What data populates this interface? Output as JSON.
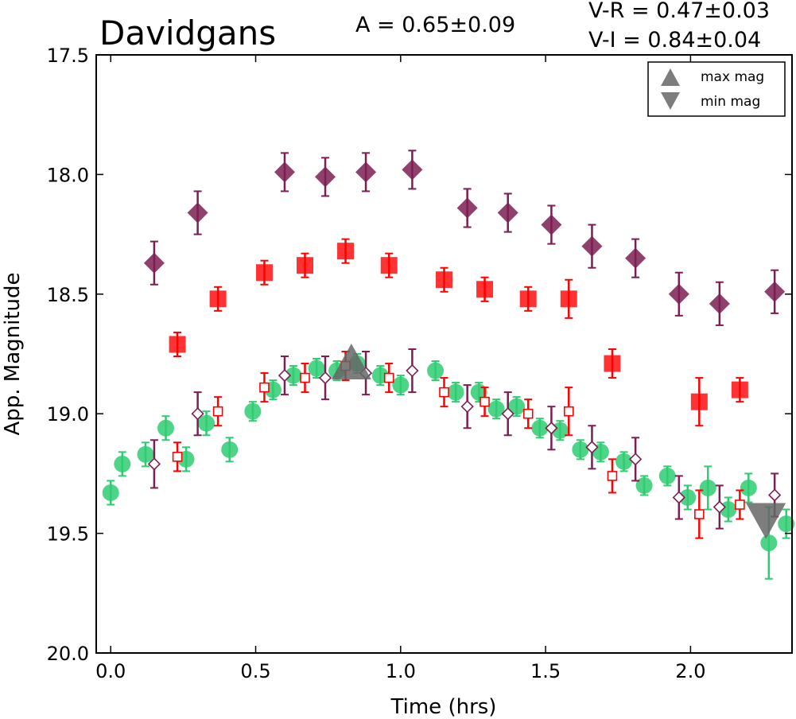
{
  "chart_data": {
    "type": "scatter",
    "title": "Davidgans",
    "annotations": {
      "amplitude": "A  = 0.65±0.09",
      "v_r": "V-R = 0.47±0.03",
      "v_i": "V-I  = 0.84±0.04"
    },
    "xlabel": "Time (hrs)",
    "ylabel": "App. Magnitude",
    "xlim": [
      -0.05,
      2.35
    ],
    "ylim": [
      20.0,
      17.5
    ],
    "y_inverted": true,
    "x_ticks": [
      "0.0",
      "0.5",
      "1.0",
      "1.5",
      "2.0"
    ],
    "x_tick_values": [
      0.0,
      0.5,
      1.0,
      1.5,
      2.0
    ],
    "y_ticks": [
      "17.5",
      "18.0",
      "18.5",
      "19.0",
      "19.5",
      "20.0"
    ],
    "y_tick_values": [
      17.5,
      18.0,
      18.5,
      19.0,
      19.5,
      20.0
    ],
    "legend": {
      "placement": "top-right",
      "entries": [
        {
          "label": "max mag",
          "marker": "triangle-up"
        },
        {
          "label": "min mag",
          "marker": "triangle-down"
        }
      ]
    },
    "colors": {
      "v_band": "#2ecc71",
      "r_band": "#ff0000",
      "i_band": "#7b1e52",
      "marker_extrema": "#666666"
    },
    "series": [
      {
        "band": "V",
        "marker": "circle",
        "points": [
          {
            "x": 0.0,
            "y": 19.33,
            "err": 0.05
          },
          {
            "x": 0.04,
            "y": 19.21,
            "err": 0.05
          },
          {
            "x": 0.12,
            "y": 19.17,
            "err": 0.05
          },
          {
            "x": 0.19,
            "y": 19.06,
            "err": 0.05
          },
          {
            "x": 0.26,
            "y": 19.19,
            "err": 0.05
          },
          {
            "x": 0.33,
            "y": 19.04,
            "err": 0.05
          },
          {
            "x": 0.41,
            "y": 19.15,
            "err": 0.05
          },
          {
            "x": 0.49,
            "y": 18.99,
            "err": 0.04
          },
          {
            "x": 0.56,
            "y": 18.9,
            "err": 0.04
          },
          {
            "x": 0.63,
            "y": 18.84,
            "err": 0.04
          },
          {
            "x": 0.71,
            "y": 18.81,
            "err": 0.04
          },
          {
            "x": 0.78,
            "y": 18.82,
            "err": 0.04
          },
          {
            "x": 0.85,
            "y": 18.79,
            "err": 0.04
          },
          {
            "x": 0.93,
            "y": 18.84,
            "err": 0.04
          },
          {
            "x": 1.0,
            "y": 18.88,
            "err": 0.04
          },
          {
            "x": 1.12,
            "y": 18.82,
            "err": 0.04
          },
          {
            "x": 1.19,
            "y": 18.91,
            "err": 0.04
          },
          {
            "x": 1.27,
            "y": 18.91,
            "err": 0.04
          },
          {
            "x": 1.33,
            "y": 18.98,
            "err": 0.04
          },
          {
            "x": 1.4,
            "y": 18.97,
            "err": 0.04
          },
          {
            "x": 1.48,
            "y": 19.06,
            "err": 0.04
          },
          {
            "x": 1.55,
            "y": 19.07,
            "err": 0.04
          },
          {
            "x": 1.62,
            "y": 19.15,
            "err": 0.04
          },
          {
            "x": 1.69,
            "y": 19.16,
            "err": 0.04
          },
          {
            "x": 1.77,
            "y": 19.2,
            "err": 0.04
          },
          {
            "x": 1.84,
            "y": 19.3,
            "err": 0.04
          },
          {
            "x": 1.92,
            "y": 19.26,
            "err": 0.04
          },
          {
            "x": 1.99,
            "y": 19.35,
            "err": 0.05
          },
          {
            "x": 2.06,
            "y": 19.31,
            "err": 0.09
          },
          {
            "x": 2.13,
            "y": 19.4,
            "err": 0.05
          },
          {
            "x": 2.2,
            "y": 19.31,
            "err": 0.06
          },
          {
            "x": 2.27,
            "y": 19.54,
            "err": 0.15
          },
          {
            "x": 2.33,
            "y": 19.46,
            "err": 0.06
          }
        ]
      },
      {
        "band": "R",
        "marker": "filled-square",
        "points": [
          {
            "x": 0.23,
            "y": 18.71,
            "err": 0.05
          },
          {
            "x": 0.37,
            "y": 18.52,
            "err": 0.05
          },
          {
            "x": 0.53,
            "y": 18.41,
            "err": 0.05
          },
          {
            "x": 0.67,
            "y": 18.38,
            "err": 0.05
          },
          {
            "x": 0.81,
            "y": 18.32,
            "err": 0.05
          },
          {
            "x": 0.96,
            "y": 18.38,
            "err": 0.05
          },
          {
            "x": 1.15,
            "y": 18.44,
            "err": 0.05
          },
          {
            "x": 1.29,
            "y": 18.48,
            "err": 0.05
          },
          {
            "x": 1.44,
            "y": 18.52,
            "err": 0.05
          },
          {
            "x": 1.58,
            "y": 18.52,
            "err": 0.08
          },
          {
            "x": 1.73,
            "y": 18.79,
            "err": 0.06
          },
          {
            "x": 2.03,
            "y": 18.95,
            "err": 0.1
          },
          {
            "x": 2.17,
            "y": 18.9,
            "err": 0.05
          }
        ]
      },
      {
        "band": "R",
        "marker": "open-square",
        "points": [
          {
            "x": 0.23,
            "y": 19.18,
            "err": 0.06
          },
          {
            "x": 0.37,
            "y": 18.99,
            "err": 0.06
          },
          {
            "x": 0.53,
            "y": 18.89,
            "err": 0.06
          },
          {
            "x": 0.67,
            "y": 18.85,
            "err": 0.06
          },
          {
            "x": 0.81,
            "y": 18.8,
            "err": 0.06
          },
          {
            "x": 0.96,
            "y": 18.85,
            "err": 0.06
          },
          {
            "x": 1.15,
            "y": 18.91,
            "err": 0.06
          },
          {
            "x": 1.29,
            "y": 18.95,
            "err": 0.06
          },
          {
            "x": 1.44,
            "y": 19.0,
            "err": 0.06
          },
          {
            "x": 1.58,
            "y": 18.99,
            "err": 0.1
          },
          {
            "x": 1.73,
            "y": 19.26,
            "err": 0.07
          },
          {
            "x": 2.03,
            "y": 19.42,
            "err": 0.1
          },
          {
            "x": 2.17,
            "y": 19.38,
            "err": 0.06
          }
        ]
      },
      {
        "band": "I",
        "marker": "filled-diamond",
        "points": [
          {
            "x": 0.15,
            "y": 18.37,
            "err": 0.09
          },
          {
            "x": 0.3,
            "y": 18.16,
            "err": 0.09
          },
          {
            "x": 0.6,
            "y": 17.99,
            "err": 0.08
          },
          {
            "x": 0.74,
            "y": 18.01,
            "err": 0.08
          },
          {
            "x": 0.88,
            "y": 17.99,
            "err": 0.08
          },
          {
            "x": 1.04,
            "y": 17.98,
            "err": 0.08
          },
          {
            "x": 1.23,
            "y": 18.14,
            "err": 0.08
          },
          {
            "x": 1.37,
            "y": 18.16,
            "err": 0.08
          },
          {
            "x": 1.52,
            "y": 18.21,
            "err": 0.08
          },
          {
            "x": 1.66,
            "y": 18.3,
            "err": 0.09
          },
          {
            "x": 1.81,
            "y": 18.35,
            "err": 0.08
          },
          {
            "x": 1.96,
            "y": 18.5,
            "err": 0.09
          },
          {
            "x": 2.1,
            "y": 18.54,
            "err": 0.09
          },
          {
            "x": 2.29,
            "y": 18.49,
            "err": 0.09
          }
        ]
      },
      {
        "band": "I",
        "marker": "open-diamond",
        "points": [
          {
            "x": 0.15,
            "y": 19.21,
            "err": 0.1
          },
          {
            "x": 0.3,
            "y": 19.0,
            "err": 0.09
          },
          {
            "x": 0.6,
            "y": 18.84,
            "err": 0.08
          },
          {
            "x": 0.74,
            "y": 18.85,
            "err": 0.09
          },
          {
            "x": 0.88,
            "y": 18.83,
            "err": 0.09
          },
          {
            "x": 1.04,
            "y": 18.82,
            "err": 0.09
          },
          {
            "x": 1.23,
            "y": 18.97,
            "err": 0.09
          },
          {
            "x": 1.37,
            "y": 19.0,
            "err": 0.09
          },
          {
            "x": 1.52,
            "y": 19.06,
            "err": 0.09
          },
          {
            "x": 1.66,
            "y": 19.14,
            "err": 0.09
          },
          {
            "x": 1.81,
            "y": 19.19,
            "err": 0.09
          },
          {
            "x": 1.96,
            "y": 19.35,
            "err": 0.09
          },
          {
            "x": 2.1,
            "y": 19.39,
            "err": 0.09
          },
          {
            "x": 2.29,
            "y": 19.34,
            "err": 0.09
          }
        ]
      }
    ],
    "extrema_markers": [
      {
        "type": "max mag",
        "x": 0.83,
        "y": 18.8
      },
      {
        "type": "min mag",
        "x": 2.26,
        "y": 19.43
      }
    ]
  }
}
